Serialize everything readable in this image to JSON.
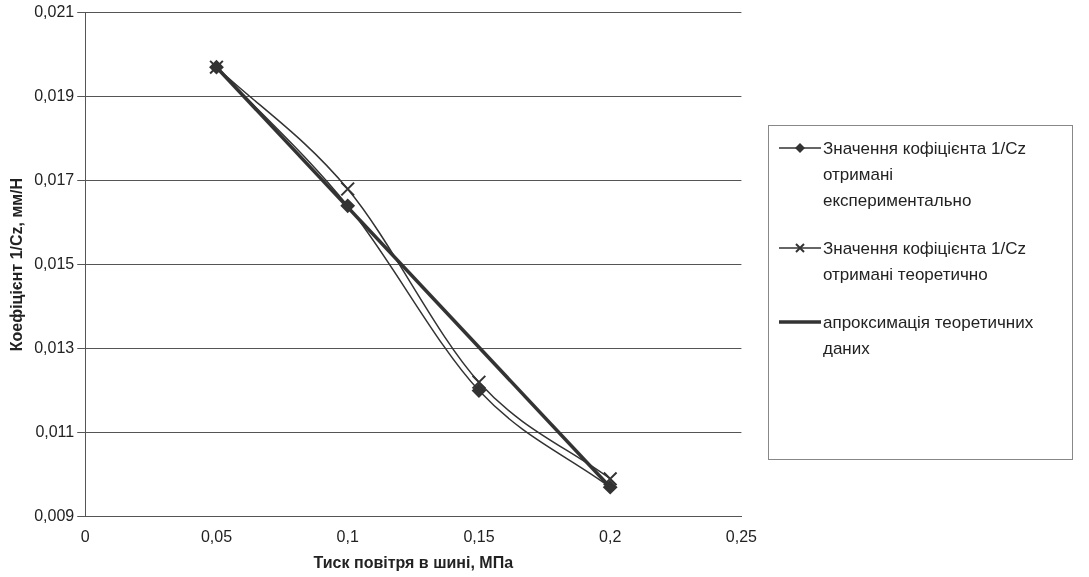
{
  "chart_data": {
    "type": "line",
    "xlabel": "Тиск повітря в шині, МПа",
    "ylabel": "Коефіцієнт 1/Cz, мм/Н",
    "xlim": [
      0,
      0.25
    ],
    "xticks": [
      0,
      {
        "value": 0.05,
        "label": "0,05"
      },
      {
        "value": 0.1,
        "label": "0,1"
      },
      {
        "value": 0.15,
        "label": "0,15"
      },
      {
        "value": 0.2,
        "label": "0,2"
      },
      {
        "value": 0.25,
        "label": "0,25"
      }
    ],
    "ylim": [
      0.009,
      0.021
    ],
    "yticks": [
      {
        "value": 0.009,
        "label": "0,009"
      },
      {
        "value": 0.011,
        "label": "0,011"
      },
      {
        "value": 0.013,
        "label": "0,013"
      },
      {
        "value": 0.015,
        "label": "0,015"
      },
      {
        "value": 0.017,
        "label": "0,017"
      },
      {
        "value": 0.019,
        "label": "0,019"
      },
      {
        "value": 0.021,
        "label": "0,021"
      }
    ],
    "grid": "y",
    "legend": "right",
    "line_style": "solid",
    "x": [
      0.05,
      0.1,
      0.15,
      0.2
    ],
    "series": [
      {
        "name": "Значення кофіцієнта 1/Cz отримані експериментально",
        "color": "#333333",
        "marker": "diamond",
        "values": [
          0.0197,
          0.0164,
          0.012,
          0.0097
        ]
      },
      {
        "name": "Значення кофіцієнта 1/Cz отримані теоретично",
        "color": "#333333",
        "marker": "cross",
        "values": [
          0.0197,
          0.0168,
          0.0122,
          0.0099
        ]
      },
      {
        "name": "апроксимація теоретичних даних",
        "color": "#333333",
        "marker": "none",
        "x": [
          0.05,
          0.2
        ],
        "values": [
          0.0197,
          0.0097
        ]
      }
    ]
  }
}
